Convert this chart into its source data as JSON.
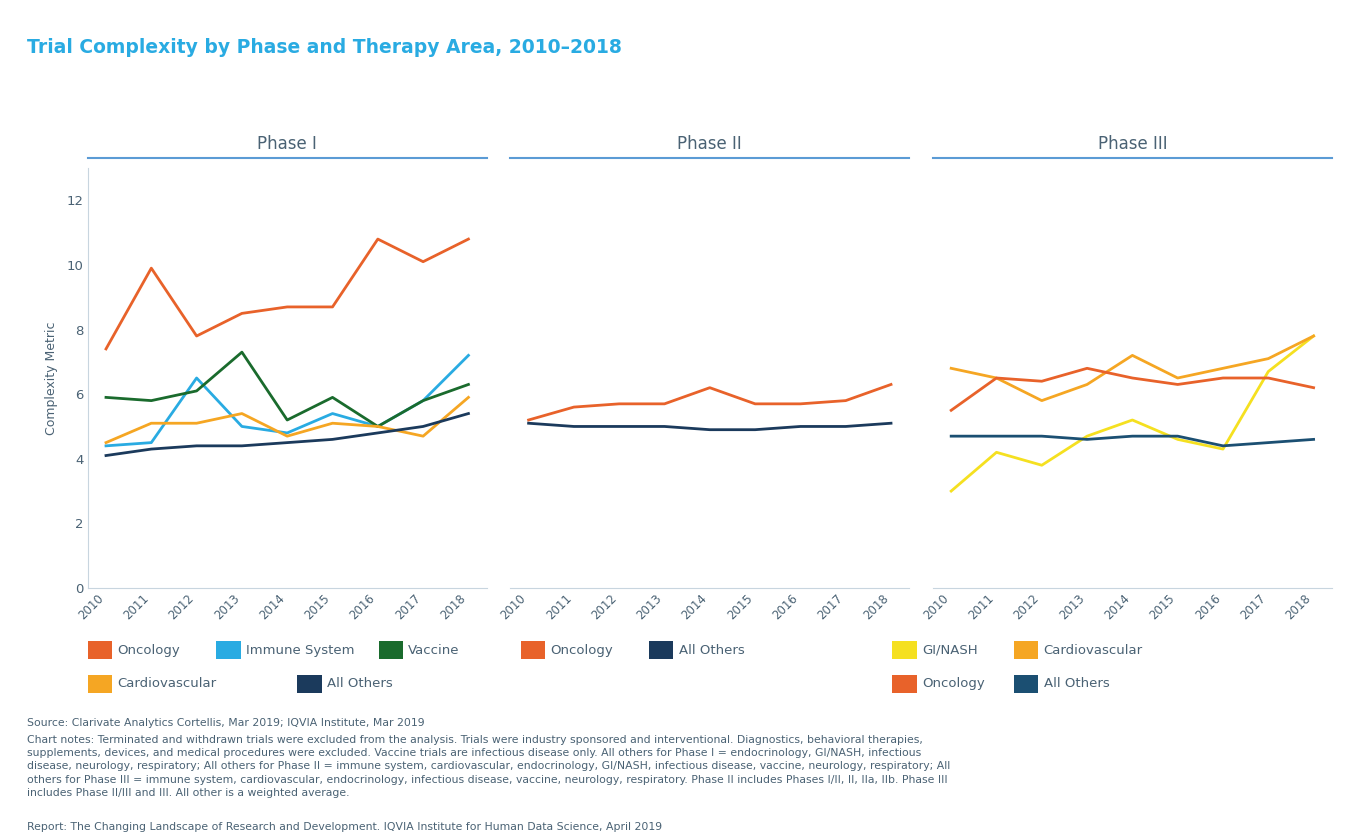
{
  "title": "Trial Complexity by Phase and Therapy Area, 2010–2018",
  "title_color": "#29ABE2",
  "ylabel": "Complexity Metric",
  "years": [
    2010,
    2011,
    2012,
    2013,
    2014,
    2015,
    2016,
    2017,
    2018
  ],
  "ylim": [
    0,
    13
  ],
  "yticks": [
    0,
    2,
    4,
    6,
    8,
    10,
    12
  ],
  "phase1": {
    "title": "Phase I",
    "Oncology": [
      7.4,
      9.9,
      7.8,
      8.5,
      8.7,
      8.7,
      10.8,
      10.1,
      10.8
    ],
    "Immune System": [
      4.4,
      4.5,
      6.5,
      5.0,
      4.8,
      5.4,
      5.0,
      5.8,
      7.2
    ],
    "Vaccine": [
      5.9,
      5.8,
      6.1,
      7.3,
      5.2,
      5.9,
      5.0,
      5.8,
      6.3
    ],
    "Cardiovascular": [
      4.5,
      5.1,
      5.1,
      5.4,
      4.7,
      5.1,
      5.0,
      4.7,
      5.9
    ],
    "All Others": [
      4.1,
      4.3,
      4.4,
      4.4,
      4.5,
      4.6,
      4.8,
      5.0,
      5.4
    ]
  },
  "phase2": {
    "title": "Phase II",
    "Oncology": [
      5.2,
      5.6,
      5.7,
      5.7,
      6.2,
      5.7,
      5.7,
      5.8,
      6.3
    ],
    "All Others": [
      5.1,
      5.0,
      5.0,
      5.0,
      4.9,
      4.9,
      5.0,
      5.0,
      5.1
    ]
  },
  "phase3": {
    "title": "Phase III",
    "GI/NASH": [
      3.0,
      4.2,
      3.8,
      4.7,
      5.2,
      4.6,
      4.3,
      6.7,
      7.8
    ],
    "Cardiovascular": [
      6.8,
      6.5,
      5.8,
      6.3,
      7.2,
      6.5,
      6.8,
      7.1,
      7.8
    ],
    "Oncology": [
      5.5,
      6.5,
      6.4,
      6.8,
      6.5,
      6.3,
      6.5,
      6.5,
      6.2
    ],
    "All Others": [
      4.7,
      4.7,
      4.7,
      4.6,
      4.7,
      4.7,
      4.4,
      4.5,
      4.6
    ]
  },
  "colors": {
    "Oncology": "#E8622A",
    "Immune System": "#29ABE2",
    "Vaccine": "#1A6B2D",
    "Cardiovascular": "#F5A623",
    "All Others_p1": "#1B3A5C",
    "All Others_p2": "#1B3A5C",
    "GI/NASH": "#F5E020",
    "All Others_p3": "#1B4F72"
  },
  "text_color": "#4A6274",
  "spine_color": "#C8D5DF",
  "source_text": "Source: Clarivate Analytics Cortellis, Mar 2019; IQVIA Institute, Mar 2019",
  "notes_text": "Chart notes: Terminated and withdrawn trials were excluded from the analysis. Trials were industry sponsored and interventional. Diagnostics, behavioral therapies,\nsupplements, devices, and medical procedures were excluded. Vaccine trials are infectious disease only. All others for Phase I = endocrinology, GI/NASH, infectious\ndisease, neurology, respiratory; All others for Phase II = immune system, cardiovascular, endocrinology, GI/NASH, infectious disease, vaccine, neurology, respiratory; All\nothers for Phase III = immune system, cardiovascular, endocrinology, infectious disease, vaccine, neurology, respiratory. Phase II includes Phases I/II, II, IIa, IIb. Phase III\nincludes Phase II/III and III. All other is a weighted average.",
  "report_text": "Report: The Changing Landscape of Research and Development. IQVIA Institute for Human Data Science, April 2019"
}
